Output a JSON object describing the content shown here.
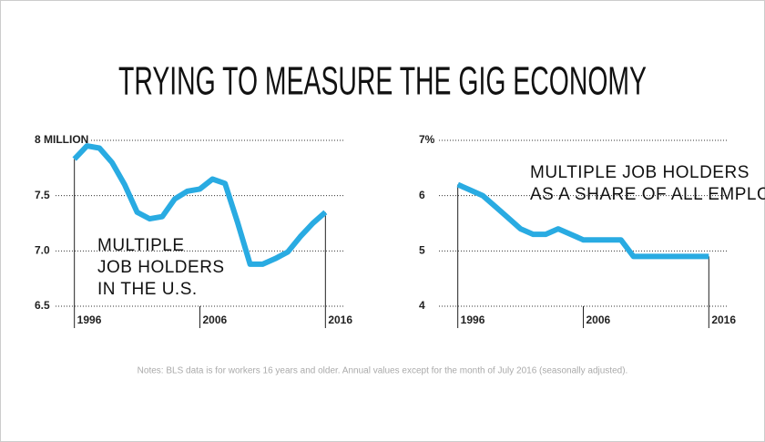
{
  "title": "TRYING TO MEASURE THE GIG ECONOMY",
  "notes": "Notes: BLS data is for workers 16 years and older. Annual values except for the month of July 2016 (seasonally adjusted).",
  "chart_data": [
    {
      "type": "line",
      "annotation": [
        "MULTIPLE",
        "JOB HOLDERS",
        "IN THE U.S."
      ],
      "x": [
        1996,
        1997,
        1998,
        1999,
        2000,
        2001,
        2002,
        2003,
        2004,
        2005,
        2006,
        2007,
        2008,
        2009,
        2010,
        2011,
        2012,
        2013,
        2014,
        2015,
        2016
      ],
      "series": [
        {
          "color": "#29abe2",
          "values": [
            7.83,
            7.95,
            7.93,
            7.8,
            7.6,
            7.35,
            7.29,
            7.31,
            7.47,
            7.54,
            7.56,
            7.65,
            7.61,
            7.26,
            6.88,
            6.88,
            6.93,
            6.99,
            7.13,
            7.25,
            7.35
          ]
        }
      ],
      "xlim": [
        1994.5,
        2017.5
      ],
      "xticks": [
        1996,
        2006,
        2016
      ],
      "ylim": [
        6.5,
        8
      ],
      "yticks": [
        {
          "value": 6.5,
          "label": "6.5"
        },
        {
          "value": 7,
          "label": "7.0"
        },
        7.5,
        {
          "value": 8,
          "label": "8 MILLION"
        }
      ],
      "grid": true
    },
    {
      "type": "line",
      "annotation": [
        "MULTIPLE JOB HOLDERS",
        "AS A SHARE OF ALL EMPLOYED"
      ],
      "x": [
        1996,
        1997,
        1998,
        1999,
        2000,
        2001,
        2002,
        2003,
        2004,
        2005,
        2006,
        2007,
        2008,
        2009,
        2010,
        2011,
        2012,
        2013,
        2014,
        2015,
        2016
      ],
      "series": [
        {
          "color": "#29abe2",
          "values": [
            6.2,
            6.1,
            6.0,
            5.8,
            5.6,
            5.4,
            5.3,
            5.3,
            5.4,
            5.3,
            5.2,
            5.2,
            5.2,
            5.2,
            4.9,
            4.9,
            4.9,
            4.9,
            4.9,
            4.9,
            4.9
          ]
        }
      ],
      "xlim": [
        1994.5,
        2017.5
      ],
      "xticks": [
        1996,
        2006,
        2016
      ],
      "ylim": [
        4,
        7
      ],
      "yticks": [
        4,
        5,
        6,
        {
          "value": 7,
          "label": "7%"
        }
      ],
      "grid": true
    }
  ]
}
